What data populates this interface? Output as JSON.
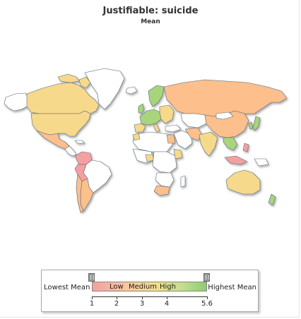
{
  "title": "Justifiable: suicide",
  "subtitle": "Mean",
  "legend": {
    "lowest_label": "Lowest Mean",
    "highest_label": "Highest Mean",
    "band_labels": [
      "Low",
      "Medium",
      "High"
    ],
    "ticks": [
      "1",
      "2",
      "3",
      "4",
      "5.6"
    ],
    "tick_values": [
      1,
      2,
      3,
      4,
      5.6
    ],
    "range": [
      1,
      5.6
    ],
    "gradient_colors": [
      "#f4a0a0",
      "#f8c79c",
      "#f2e08c",
      "#c5df8c",
      "#8fcc70"
    ]
  },
  "colors": {
    "ocean": "#ffffff",
    "no_data": "#ffffff",
    "border": "#5a6b7a",
    "low": "#f4a0a0",
    "medium_low": "#fdbf8c",
    "medium": "#f6d98a",
    "high": "#a8d47c"
  }
}
